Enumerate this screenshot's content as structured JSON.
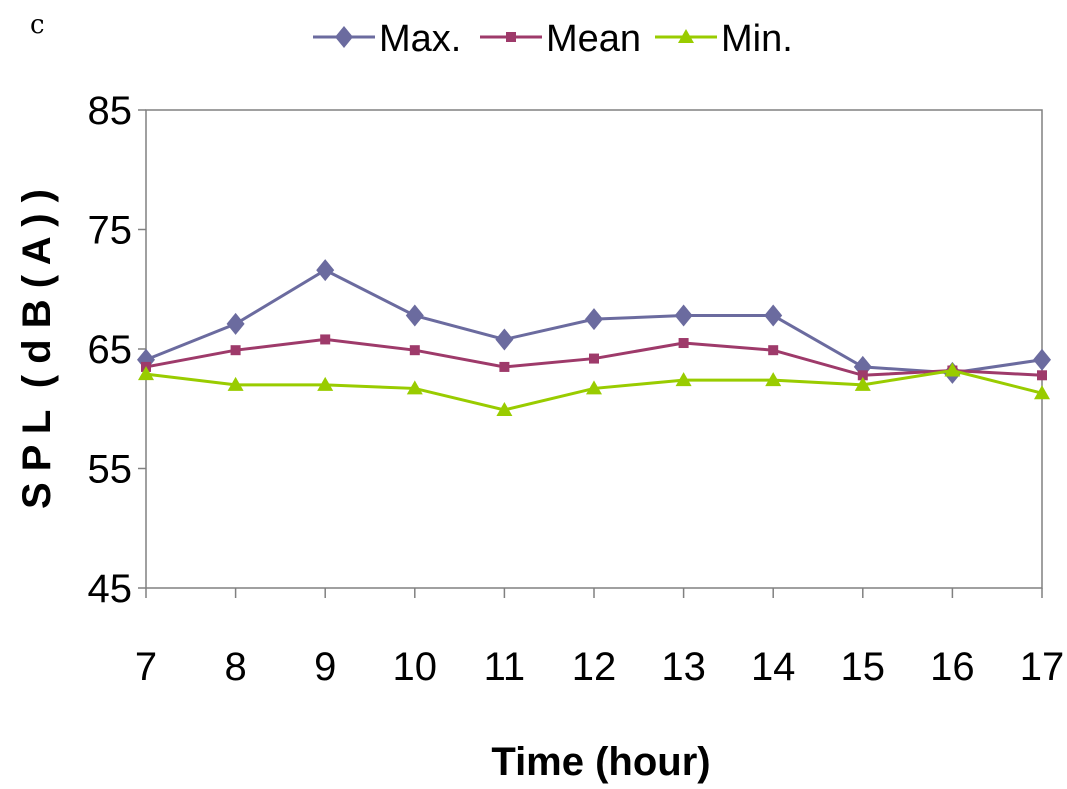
{
  "panel_label": "c",
  "chart_data": {
    "type": "line",
    "title": "",
    "xlabel": "Time (hour)",
    "ylabel": "S P L  ( d B ( A ) )",
    "x": [
      7,
      8,
      9,
      10,
      11,
      12,
      13,
      14,
      15,
      16,
      17
    ],
    "xlim": [
      7,
      17
    ],
    "ylim": [
      45,
      85
    ],
    "yticks": [
      45,
      55,
      65,
      75,
      85
    ],
    "grid": false,
    "legend_position": "top-center",
    "series": [
      {
        "name": "Max.",
        "color": "#6B6B9F",
        "marker": "diamond",
        "values": [
          64.1,
          67.1,
          71.6,
          67.8,
          65.8,
          67.5,
          67.8,
          67.8,
          63.5,
          63.0,
          64.1
        ]
      },
      {
        "name": "Mean",
        "color": "#9E3A6A",
        "marker": "square",
        "values": [
          63.5,
          64.9,
          65.8,
          64.9,
          63.5,
          64.2,
          65.5,
          64.9,
          62.8,
          63.2,
          62.8
        ]
      },
      {
        "name": "Min.",
        "color": "#99CC00",
        "marker": "triangle",
        "values": [
          62.9,
          62.0,
          62.0,
          61.7,
          59.9,
          61.7,
          62.4,
          62.4,
          62.0,
          63.2,
          61.3
        ]
      }
    ]
  }
}
